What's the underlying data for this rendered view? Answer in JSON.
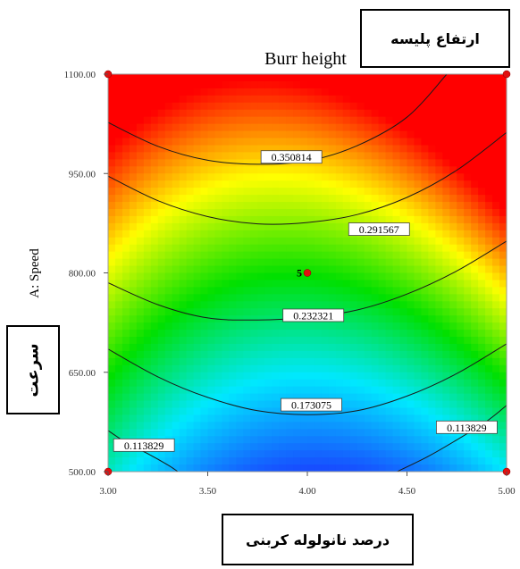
{
  "chart_data": {
    "type": "contour",
    "title": "Burr height",
    "xlabel": "",
    "ylabel": "A: Speed",
    "xlim": [
      3.0,
      5.0
    ],
    "ylim": [
      500.0,
      1100.0
    ],
    "x_ticks": [
      "3.00",
      "3.50",
      "4.00",
      "4.50",
      "5.00"
    ],
    "y_ticks": [
      "500.00",
      "650.00",
      "800.00",
      "950.00",
      "1100.00"
    ],
    "colormap": [
      "#1a3cff",
      "#00e8ff",
      "#00e000",
      "#ffff00",
      "#ff0000"
    ],
    "value_range": [
      0.06,
      0.4
    ],
    "contour_levels": [
      {
        "label": "0.350814",
        "points": [
          [
            3.0,
            1027
          ],
          [
            3.25,
            991
          ],
          [
            3.5,
            970
          ],
          [
            3.75,
            964
          ],
          [
            4.0,
            969
          ],
          [
            4.25,
            992
          ],
          [
            4.5,
            1035
          ],
          [
            4.7,
            1100
          ]
        ],
        "label_at": [
          3.92,
          975
        ]
      },
      {
        "label": "0.291567",
        "points": [
          [
            3.0,
            946
          ],
          [
            3.25,
            909
          ],
          [
            3.5,
            885
          ],
          [
            3.75,
            874
          ],
          [
            4.0,
            876
          ],
          [
            4.25,
            888
          ],
          [
            4.5,
            914
          ],
          [
            4.75,
            955
          ],
          [
            5.0,
            1012
          ]
        ],
        "label_at": [
          4.36,
          866
        ]
      },
      {
        "label": "0.232321",
        "points": [
          [
            3.0,
            785
          ],
          [
            3.25,
            752
          ],
          [
            3.5,
            732
          ],
          [
            3.75,
            729
          ],
          [
            4.0,
            733
          ],
          [
            4.25,
            744
          ],
          [
            4.5,
            768
          ],
          [
            4.75,
            803
          ],
          [
            5.0,
            848
          ]
        ],
        "label_at": [
          4.03,
          736
        ]
      },
      {
        "label": "0.173075",
        "points": [
          [
            3.0,
            685
          ],
          [
            3.25,
            643
          ],
          [
            3.5,
            612
          ],
          [
            3.75,
            592
          ],
          [
            4.0,
            586
          ],
          [
            4.25,
            592
          ],
          [
            4.5,
            614
          ],
          [
            4.75,
            648
          ],
          [
            5.0,
            693
          ]
        ],
        "label_at": [
          4.02,
          601
        ]
      },
      {
        "label": "0.113829",
        "points": [
          [
            3.0,
            562
          ],
          [
            3.1,
            542
          ],
          [
            3.2,
            527
          ],
          [
            3.3,
            510
          ],
          [
            3.35,
            500
          ]
        ],
        "label_at": [
          3.18,
          540
        ]
      },
      {
        "label": "0.113829",
        "points": [
          [
            4.45,
            500
          ],
          [
            4.6,
            522
          ],
          [
            4.75,
            548
          ],
          [
            4.9,
            576
          ],
          [
            5.0,
            600
          ]
        ],
        "label_at": [
          4.8,
          567
        ]
      }
    ],
    "design_points": [
      [
        3.0,
        500
      ],
      [
        3.0,
        1100
      ],
      [
        5.0,
        500
      ],
      [
        5.0,
        1100
      ],
      [
        4.0,
        800
      ]
    ],
    "center_point_label": "5"
  },
  "annotations": {
    "top_right": "ارتفاع پلیسه",
    "left": "سرعت",
    "bottom": "درصد نانولوله کربنی"
  }
}
